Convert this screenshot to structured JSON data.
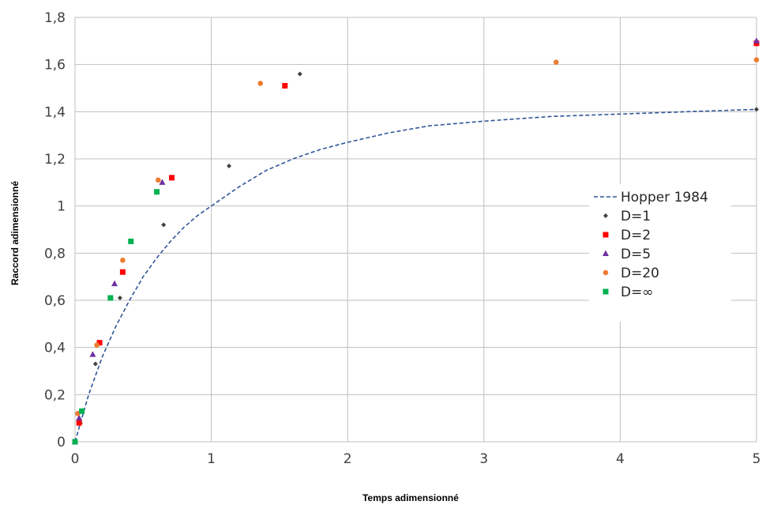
{
  "chart_data": {
    "type": "scatter",
    "xlabel": "Temps adimensionné",
    "ylabel": "Raccord adimensionné",
    "xlim": [
      0,
      5
    ],
    "ylim": [
      0,
      1.8
    ],
    "x_ticks": [
      "0",
      "1",
      "2",
      "3",
      "4",
      "5"
    ],
    "y_ticks": [
      "0",
      "0,2",
      "0,4",
      "0,6",
      "0,8",
      "1",
      "1,2",
      "1,4",
      "1,6",
      "1,8"
    ],
    "grid": true,
    "legend_position": "right",
    "line_series": {
      "name": "Hopper 1984",
      "style": "dashed",
      "color": "#2F5597",
      "x": [
        0,
        0.1,
        0.2,
        0.3,
        0.4,
        0.5,
        0.6,
        0.7,
        0.8,
        0.9,
        1.0,
        1.2,
        1.4,
        1.6,
        1.8,
        2.0,
        2.3,
        2.6,
        3.0,
        3.5,
        4.0,
        4.5,
        5.0
      ],
      "y": [
        0,
        0.2,
        0.36,
        0.49,
        0.6,
        0.7,
        0.78,
        0.85,
        0.91,
        0.96,
        1.0,
        1.08,
        1.15,
        1.2,
        1.24,
        1.27,
        1.31,
        1.34,
        1.36,
        1.38,
        1.39,
        1.4,
        1.41
      ]
    },
    "series": [
      {
        "name": "D=1",
        "marker": "diamond",
        "color": "#404040",
        "x": [
          0.0,
          0.04,
          0.15,
          0.33,
          0.65,
          1.13,
          1.65,
          5.0
        ],
        "y": [
          0.0,
          0.08,
          0.33,
          0.61,
          0.92,
          1.17,
          1.56,
          1.41
        ]
      },
      {
        "name": "D=2",
        "marker": "square",
        "color": "#FF0000",
        "x": [
          0.0,
          0.03,
          0.18,
          0.35,
          0.71,
          1.54,
          5.0
        ],
        "y": [
          0.0,
          0.08,
          0.42,
          0.72,
          1.12,
          1.51,
          1.69
        ]
      },
      {
        "name": "D=5",
        "marker": "triangle",
        "color": "#7030A0",
        "x": [
          0.0,
          0.03,
          0.13,
          0.29,
          0.64,
          5.0
        ],
        "y": [
          0.0,
          0.1,
          0.37,
          0.67,
          1.1,
          1.7
        ]
      },
      {
        "name": "D=20",
        "marker": "circle",
        "color": "#ED7D31",
        "x": [
          0.0,
          0.02,
          0.16,
          0.35,
          0.61,
          1.36,
          3.53,
          5.0
        ],
        "y": [
          0.0,
          0.12,
          0.41,
          0.77,
          1.11,
          1.52,
          1.61,
          1.62
        ]
      },
      {
        "name": "D=∞",
        "marker": "square",
        "color": "#00B050",
        "x": [
          0.0,
          0.05,
          0.26,
          0.41,
          0.6
        ],
        "y": [
          0.0,
          0.13,
          0.61,
          0.85,
          1.06
        ]
      }
    ]
  }
}
